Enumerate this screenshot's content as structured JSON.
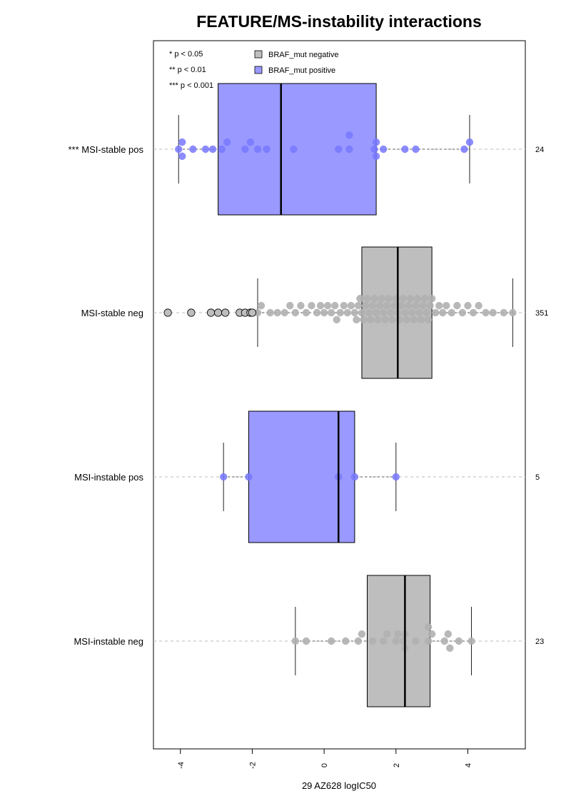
{
  "chart_data": {
    "type": "boxplot",
    "title": "FEATURE/MS-instability interactions",
    "xlabel": "29 AZ628 logIC50",
    "xlim": [
      -4.75,
      5.6
    ],
    "x_ticks": [
      -4,
      -2,
      0,
      2,
      4
    ],
    "x_tick_labels": [
      "-4",
      "-2",
      "0",
      "2",
      "4"
    ],
    "grid": false,
    "legend_placement": "top-left",
    "significance_legend": [
      "* p < 0.05",
      "** p < 0.01",
      "*** p < 0.001"
    ],
    "legend": [
      {
        "label": "BRAF_mut negative",
        "color": "#bebebe"
      },
      {
        "label": "BRAF_mut positive",
        "color": "#9999ff"
      }
    ],
    "colors": {
      "negative_box": "#bebebe",
      "positive_box": "#9999ff",
      "negative_point": "#b0b0b0",
      "positive_point": "#7878ff",
      "dashed_guide": "#bbbbbb"
    },
    "groups": [
      {
        "label": "*** MSI-stable pos",
        "braf": "positive",
        "n": "24",
        "whisker_low": -4.05,
        "q1": -2.95,
        "median": -1.2,
        "q3": 1.45,
        "whisker_high": 4.05,
        "outliers": [],
        "points": [
          -4.05,
          -3.95,
          -3.95,
          -3.65,
          -3.3,
          -3.1,
          -2.85,
          -2.7,
          -2.2,
          -2.05,
          -1.85,
          -1.6,
          -0.85,
          0.4,
          0.7,
          0.7,
          1.4,
          1.45,
          1.45,
          1.65,
          2.25,
          2.55,
          3.9,
          4.05
        ]
      },
      {
        "label": "MSI-stable neg",
        "braf": "negative",
        "n": "351",
        "whisker_low": -1.85,
        "q1": 1.05,
        "median": 2.05,
        "q3": 3.0,
        "whisker_high": 5.25,
        "outliers": [
          -4.35,
          -3.7,
          -3.15,
          -2.95,
          -2.75,
          -2.35,
          -2.2,
          -2.05,
          -2.0
        ],
        "points": [
          -1.85,
          -1.75,
          -1.5,
          -1.3,
          -1.1,
          -0.95,
          -0.8,
          -0.65,
          -0.5,
          -0.35,
          -0.2,
          -0.1,
          0.0,
          0.1,
          0.2,
          0.3,
          0.35,
          0.45,
          0.55,
          0.65,
          0.75,
          0.85,
          0.9,
          0.95,
          1.0,
          1.05,
          1.1,
          1.15,
          1.2,
          1.25,
          1.3,
          1.35,
          1.4,
          1.45,
          1.5,
          1.55,
          1.6,
          1.65,
          1.7,
          1.75,
          1.8,
          1.85,
          1.9,
          1.95,
          2.0,
          2.05,
          2.1,
          2.15,
          2.2,
          2.25,
          2.3,
          2.35,
          2.4,
          2.45,
          2.5,
          2.55,
          2.6,
          2.65,
          2.7,
          2.75,
          2.8,
          2.85,
          2.9,
          2.95,
          3.0,
          3.1,
          3.2,
          3.3,
          3.4,
          3.55,
          3.7,
          3.85,
          4.0,
          4.15,
          4.3,
          4.5,
          4.7,
          5.0,
          5.25
        ]
      },
      {
        "label": "MSI-instable pos",
        "braf": "positive",
        "n": "5",
        "whisker_low": -2.8,
        "q1": -2.1,
        "median": 0.4,
        "q3": 0.85,
        "whisker_high": 2.0,
        "outliers": [],
        "points": [
          -2.8,
          -2.1,
          0.4,
          0.85,
          2.0
        ]
      },
      {
        "label": "MSI-instable neg",
        "braf": "negative",
        "n": "23",
        "whisker_low": -0.8,
        "q1": 1.2,
        "median": 2.25,
        "q3": 2.95,
        "whisker_high": 4.1,
        "outliers": [],
        "points": [
          -0.8,
          -0.5,
          0.2,
          0.6,
          0.95,
          1.05,
          1.35,
          1.65,
          1.75,
          2.0,
          2.05,
          2.2,
          2.25,
          2.25,
          2.55,
          2.9,
          2.9,
          3.0,
          3.35,
          3.45,
          3.5,
          3.75,
          4.1
        ]
      }
    ]
  }
}
